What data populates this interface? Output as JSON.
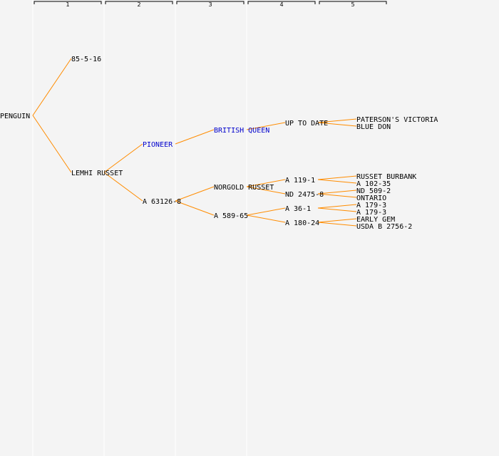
{
  "generations": [
    "1",
    "2",
    "3",
    "4",
    "5"
  ],
  "tree": {
    "label": "PENGUIN",
    "children": [
      {
        "label": "85-5-16"
      },
      {
        "label": "LEMHI RUSSET",
        "children": [
          {
            "label": "PIONEER",
            "link": true,
            "children": [
              {
                "label": "BRITISH QUEEN",
                "link": true,
                "children": [
                  {
                    "label": "UP TO DATE",
                    "children": [
                      {
                        "label": "PATERSON'S VICTORIA"
                      },
                      {
                        "label": "BLUE DON"
                      }
                    ]
                  }
                ]
              }
            ]
          },
          {
            "label": "A 63126-8",
            "children": [
              {
                "label": "NORGOLD RUSSET",
                "children": [
                  {
                    "label": "A 119-1",
                    "children": [
                      {
                        "label": "RUSSET BURBANK"
                      },
                      {
                        "label": "A 102-35"
                      }
                    ]
                  },
                  {
                    "label": "ND 2475-8",
                    "children": [
                      {
                        "label": "ND 509-2"
                      },
                      {
                        "label": "ONTARIO"
                      }
                    ]
                  }
                ]
              },
              {
                "label": "A 589-65",
                "children": [
                  {
                    "label": "A 36-1",
                    "children": [
                      {
                        "label": "A 179-3"
                      },
                      {
                        "label": "A 179-3"
                      }
                    ]
                  },
                  {
                    "label": "A 180-24",
                    "children": [
                      {
                        "label": "EARLY GEM"
                      },
                      {
                        "label": "USDA B 2756-2"
                      }
                    ]
                  }
                ]
              }
            ]
          }
        ]
      }
    ]
  }
}
